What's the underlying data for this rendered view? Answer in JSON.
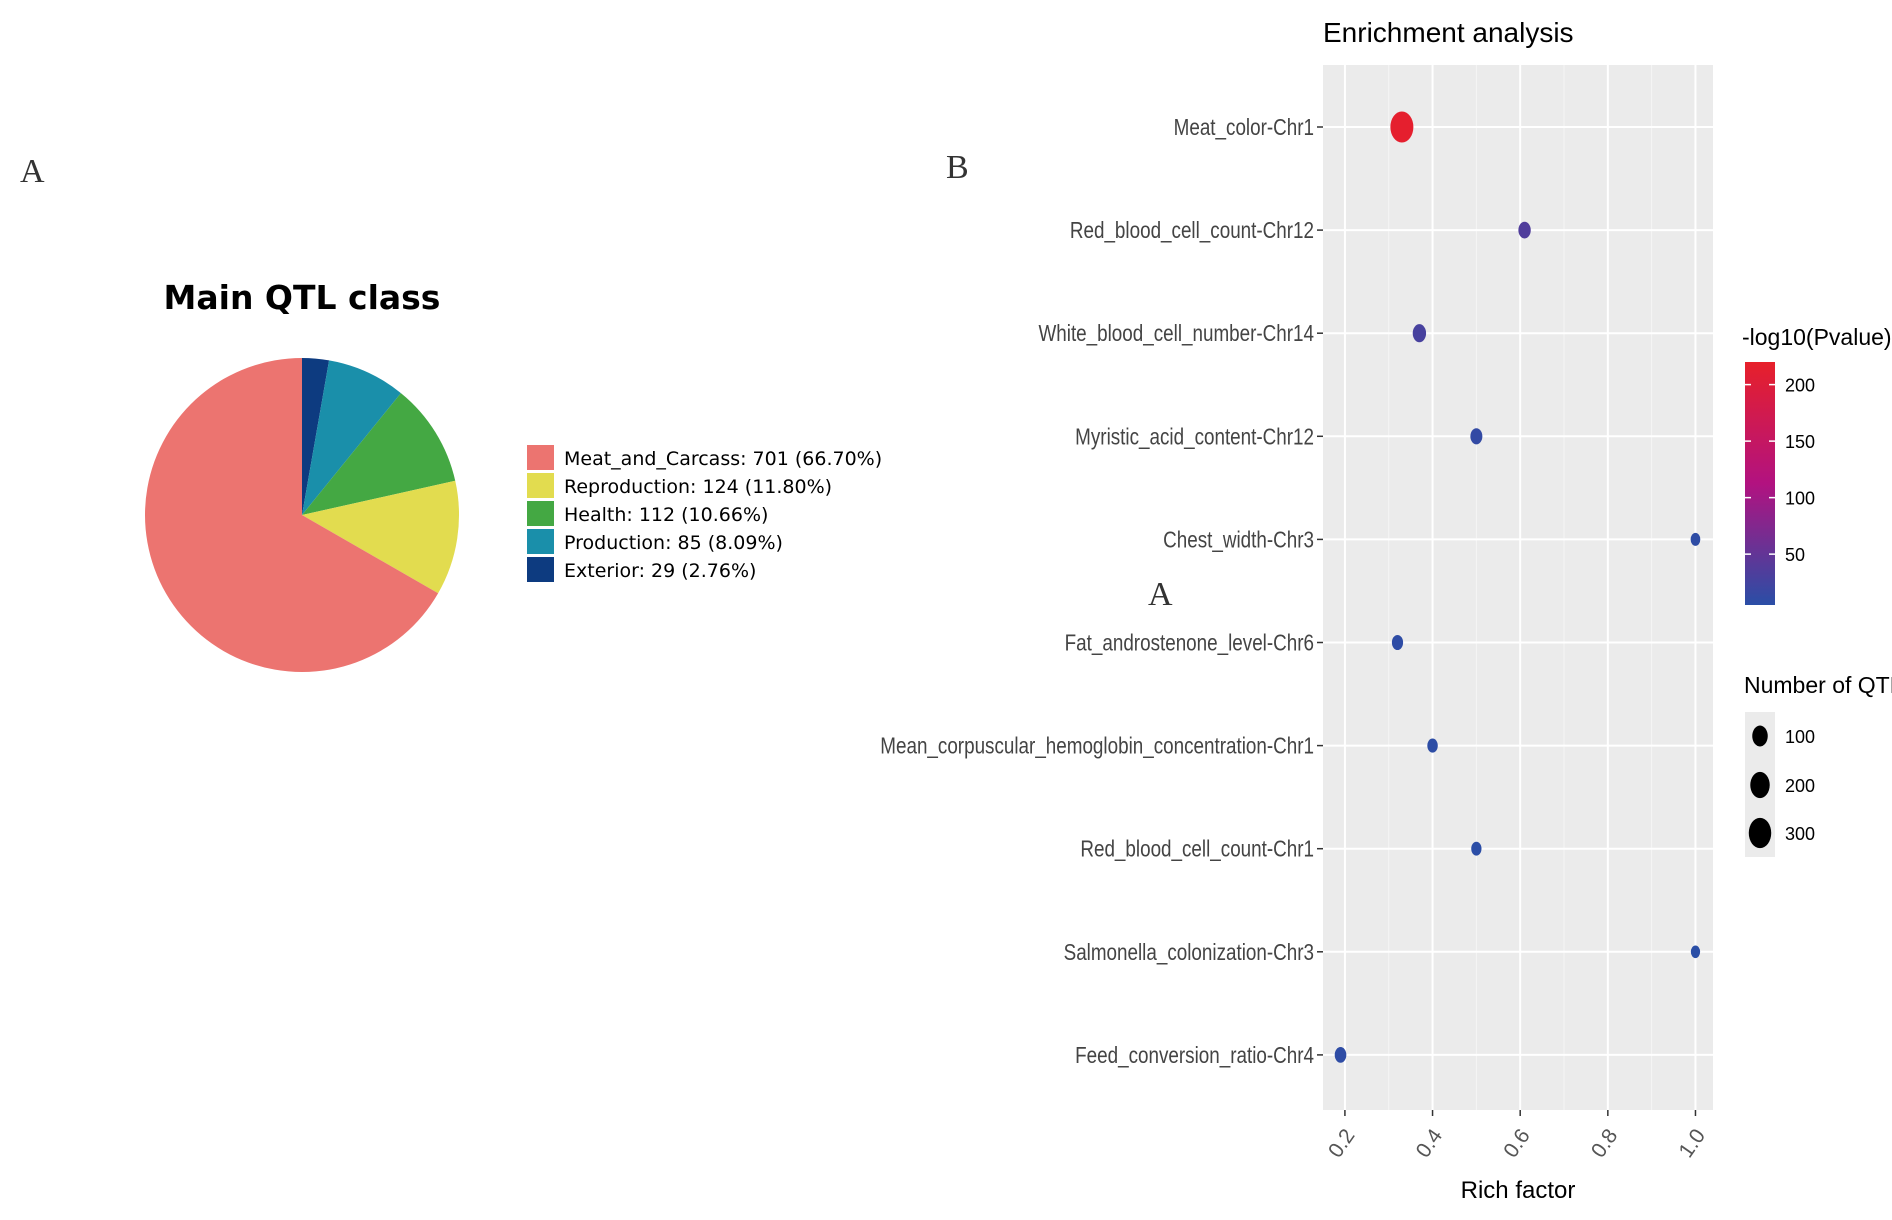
{
  "figure": {
    "panel_letters": [
      "A",
      "B",
      "A"
    ]
  },
  "chart_data": [
    {
      "type": "pie",
      "title": "Main QTL class",
      "slices": [
        {
          "label": "Meat_and_Carcass",
          "value": 701,
          "percent": 66.7,
          "legend": "Meat_and_Carcass: 701 (66.70%)",
          "color": "#ec7470"
        },
        {
          "label": "Reproduction",
          "value": 124,
          "percent": 11.8,
          "legend": "Reproduction: 124 (11.80%)",
          "color": "#e2dc4f"
        },
        {
          "label": "Health",
          "value": 112,
          "percent": 10.66,
          "legend": "Health: 112 (10.66%)",
          "color": "#44a843"
        },
        {
          "label": "Production",
          "value": 85,
          "percent": 8.09,
          "legend": "Production: 85 (8.09%)",
          "color": "#1a8faa"
        },
        {
          "label": "Exterior",
          "value": 29,
          "percent": 2.76,
          "legend": "Exterior: 29 (2.76%)",
          "color": "#0d3b80"
        }
      ],
      "legend_position": "right"
    },
    {
      "type": "scatter",
      "title": "Enrichment analysis",
      "xlabel": "Rich factor",
      "ylabel": "",
      "xlim": [
        0.15,
        1.04
      ],
      "xticks": [
        0.2,
        0.4,
        0.6,
        0.8,
        1.0
      ],
      "xtick_labels": [
        "0.2",
        "0.4",
        "0.6",
        "0.8",
        "1.0"
      ],
      "grid": true,
      "background": "#ebebeb",
      "categories": [
        "Meat_color-Chr1",
        "Red_blood_cell_count-Chr12",
        "White_blood_cell_number-Chr14",
        "Myristic_acid_content-Chr12",
        "Chest_width-Chr3",
        "Fat_androstenone_level-Chr6",
        "Mean_corpuscular_hemoglobin_concentration-Chr1",
        "Red_blood_cell_count-Chr1",
        "Salmonella_colonization-Chr3",
        "Feed_conversion_ratio-Chr4"
      ],
      "points": [
        {
          "category": "Meat_color-Chr1",
          "rich_factor": 0.33,
          "neg_log10_p": 215,
          "n_qtls": 320
        },
        {
          "category": "Red_blood_cell_count-Chr12",
          "rich_factor": 0.61,
          "neg_log10_p": 35,
          "n_qtls": 45
        },
        {
          "category": "White_blood_cell_number-Chr14",
          "rich_factor": 0.37,
          "neg_log10_p": 28,
          "n_qtls": 60
        },
        {
          "category": "Myristic_acid_content-Chr12",
          "rich_factor": 0.5,
          "neg_log10_p": 12,
          "n_qtls": 40
        },
        {
          "category": "Chest_width-Chr3",
          "rich_factor": 1.0,
          "neg_log10_p": 8,
          "n_qtls": 15
        },
        {
          "category": "Fat_androstenone_level-Chr6",
          "rich_factor": 0.32,
          "neg_log10_p": 8,
          "n_qtls": 30
        },
        {
          "category": "Mean_corpuscular_hemoglobin_concentration-Chr1",
          "rich_factor": 0.4,
          "neg_log10_p": 7,
          "n_qtls": 22
        },
        {
          "category": "Red_blood_cell_count-Chr1",
          "rich_factor": 0.5,
          "neg_log10_p": 6,
          "n_qtls": 20
        },
        {
          "category": "Salmonella_colonization-Chr3",
          "rich_factor": 1.0,
          "neg_log10_p": 5,
          "n_qtls": 12
        },
        {
          "category": "Feed_conversion_ratio-Chr4",
          "rich_factor": 0.19,
          "neg_log10_p": 8,
          "n_qtls": 35
        }
      ],
      "color_legend": {
        "title": "-log10(Pvalue)",
        "range": [
          5,
          220
        ],
        "ticks": [
          50,
          100,
          150,
          200
        ],
        "tick_labels": [
          "50",
          "100",
          "150",
          "200"
        ],
        "low_color": "#2a4ea6",
        "mid_color": "#b21280",
        "high_color": "#e7202a"
      },
      "size_legend": {
        "title": "Number of QTLs",
        "values": [
          100,
          200,
          300
        ],
        "labels": [
          "100",
          "200",
          "300"
        ]
      }
    }
  ]
}
